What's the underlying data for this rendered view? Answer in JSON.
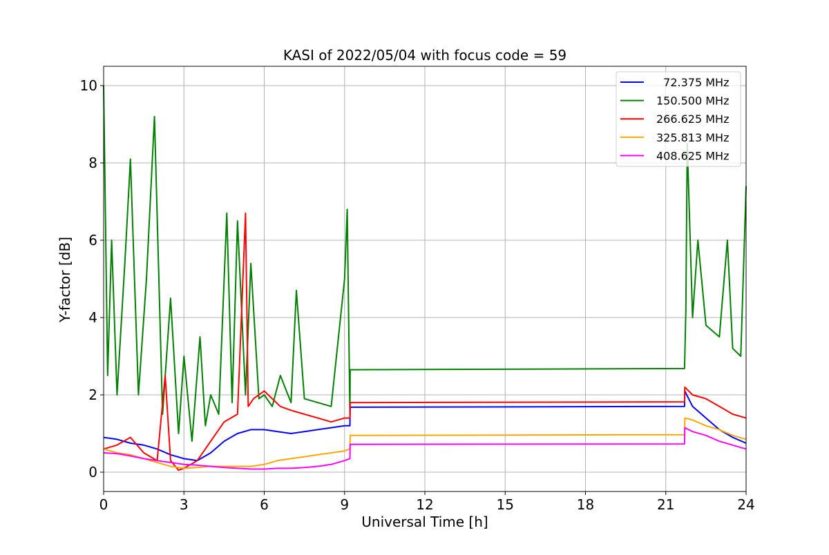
{
  "chart_data": {
    "type": "line",
    "title": "KASI of 2022/05/04 with focus code = 59",
    "xlabel": "Universal Time [h]",
    "ylabel": "Y-factor [dB]",
    "xlim": [
      0,
      24
    ],
    "ylim": [
      -0.5,
      10.5
    ],
    "xticks": [
      0,
      3,
      6,
      9,
      12,
      15,
      18,
      21,
      24
    ],
    "yticks": [
      0,
      2,
      4,
      6,
      8,
      10
    ],
    "grid": true,
    "legend_position": "top-right",
    "series": [
      {
        "name": "72.375 MHz",
        "legend_label": "  72.375 MHz",
        "color": "#0000ff",
        "x": [
          0,
          0.5,
          1,
          1.5,
          2,
          2.5,
          3,
          3.5,
          4,
          4.5,
          5,
          5.5,
          6,
          6.5,
          7,
          7.5,
          8,
          8.5,
          9,
          9.2,
          9.21,
          21.7,
          21.71,
          22,
          22.5,
          23,
          23.5,
          24
        ],
        "y": [
          0.9,
          0.85,
          0.75,
          0.7,
          0.6,
          0.45,
          0.35,
          0.3,
          0.5,
          0.8,
          1.0,
          1.1,
          1.1,
          1.05,
          1.0,
          1.05,
          1.1,
          1.15,
          1.2,
          1.2,
          1.68,
          1.7,
          2.1,
          1.7,
          1.4,
          1.1,
          0.9,
          0.75
        ]
      },
      {
        "name": "150.500 MHz",
        "legend_label": "150.500 MHz",
        "color": "#008000",
        "x": [
          0,
          0.15,
          0.3,
          0.5,
          0.8,
          1,
          1.3,
          1.6,
          1.9,
          2.2,
          2.5,
          2.8,
          3,
          3.3,
          3.6,
          3.8,
          4,
          4.3,
          4.6,
          4.8,
          5,
          5.3,
          5.5,
          5.8,
          6,
          6.3,
          6.6,
          7,
          7.2,
          7.5,
          8,
          8.5,
          9,
          9.1,
          9.2,
          9.21,
          21.7,
          21.75,
          21.8,
          22,
          22.2,
          22.5,
          23,
          23.3,
          23.5,
          23.8,
          24
        ],
        "y": [
          10.0,
          2.5,
          6.0,
          2.0,
          5.5,
          8.1,
          2.0,
          5.0,
          9.2,
          1.5,
          4.5,
          1.0,
          3.0,
          0.8,
          3.5,
          1.2,
          2.0,
          1.5,
          6.7,
          1.8,
          6.5,
          2.0,
          5.4,
          1.9,
          2.0,
          1.7,
          2.5,
          1.8,
          4.7,
          1.9,
          1.8,
          1.7,
          5.0,
          6.8,
          1.5,
          2.65,
          2.68,
          4.2,
          8.5,
          4.0,
          6.0,
          3.8,
          3.5,
          6.0,
          3.2,
          3.0,
          7.4
        ]
      },
      {
        "name": "266.625 MHz",
        "legend_label": "266.625 MHz",
        "color": "#ff0000",
        "x": [
          0,
          0.5,
          1,
          1.5,
          2,
          2.3,
          2.5,
          2.8,
          3,
          3.5,
          4,
          4.5,
          5,
          5.3,
          5.4,
          5.6,
          6,
          6.3,
          6.6,
          7,
          7.5,
          8,
          8.5,
          9,
          9.2,
          9.21,
          21.7,
          21.71,
          22,
          22.5,
          23,
          23.5,
          24
        ],
        "y": [
          0.6,
          0.7,
          0.9,
          0.5,
          0.3,
          2.5,
          0.3,
          0.05,
          0.1,
          0.3,
          0.8,
          1.3,
          1.5,
          6.7,
          1.7,
          1.9,
          2.1,
          1.9,
          1.7,
          1.6,
          1.5,
          1.4,
          1.3,
          1.4,
          1.4,
          1.8,
          1.82,
          2.2,
          2.0,
          1.9,
          1.7,
          1.5,
          1.4
        ]
      },
      {
        "name": "325.813 MHz",
        "legend_label": "325.813 MHz",
        "color": "#ffa500",
        "x": [
          0,
          0.5,
          1,
          1.5,
          2,
          2.5,
          3,
          3.5,
          4,
          4.5,
          5,
          5.5,
          6,
          6.5,
          7,
          7.5,
          8,
          8.5,
          9,
          9.2,
          9.21,
          21.7,
          21.71,
          22,
          22.5,
          23,
          23.5,
          24
        ],
        "y": [
          0.6,
          0.5,
          0.45,
          0.35,
          0.25,
          0.15,
          0.1,
          0.12,
          0.15,
          0.15,
          0.15,
          0.15,
          0.2,
          0.3,
          0.35,
          0.4,
          0.45,
          0.5,
          0.55,
          0.6,
          0.95,
          0.97,
          1.4,
          1.35,
          1.2,
          1.1,
          0.95,
          0.85
        ]
      },
      {
        "name": "408.625 MHz",
        "legend_label": "408.625 MHz",
        "color": "#ff00ff",
        "x": [
          0,
          0.5,
          1,
          1.5,
          2,
          2.5,
          3,
          3.5,
          4,
          4.5,
          5,
          5.5,
          6,
          6.5,
          7,
          7.5,
          8,
          8.5,
          9,
          9.2,
          9.21,
          21.7,
          21.71,
          22,
          22.5,
          23,
          23.5,
          24
        ],
        "y": [
          0.5,
          0.48,
          0.42,
          0.35,
          0.3,
          0.25,
          0.2,
          0.18,
          0.15,
          0.12,
          0.1,
          0.08,
          0.08,
          0.1,
          0.1,
          0.12,
          0.15,
          0.2,
          0.3,
          0.35,
          0.72,
          0.73,
          1.15,
          1.05,
          0.95,
          0.8,
          0.7,
          0.6
        ]
      }
    ]
  }
}
